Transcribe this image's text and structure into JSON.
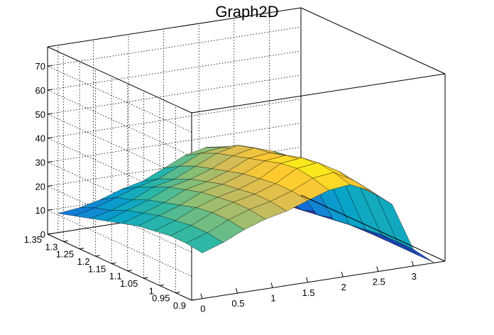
{
  "chart_data": {
    "type": "surface",
    "title": "Graph2D",
    "grid": true,
    "legend": "none",
    "x_axis": {
      "range": [
        -0.15,
        3.45
      ],
      "ticks": [
        "0",
        "0.5",
        "1",
        "1.5",
        "2",
        "2.5",
        "3"
      ]
    },
    "y_axis": {
      "range": [
        0.9,
        1.35
      ],
      "ticks": [
        "0.9",
        "0.95",
        "1",
        "1.05",
        "1.1",
        "1.15",
        "1.2",
        "1.25",
        "1.3",
        "1.35"
      ]
    },
    "z_axis": {
      "range": [
        0,
        78
      ],
      "ticks": [
        "0",
        "10",
        "20",
        "30",
        "40",
        "50",
        "60",
        "70"
      ]
    },
    "colormap": [
      "#352a87",
      "#0f5cdd",
      "#1481d6",
      "#06a4ca",
      "#2eb7a4",
      "#87bf77",
      "#d1bb59",
      "#fec832",
      "#f9fb0e"
    ],
    "grid_x": [
      0,
      0.3,
      0.6,
      0.9,
      1.2,
      1.5,
      1.8,
      2.1,
      2.4,
      2.7,
      3.0,
      3.3
    ],
    "grid_y": [
      1.35,
      1.3,
      1.25,
      1.2,
      1.15,
      1.1,
      1.05,
      1.0,
      0.95,
      0.9
    ],
    "z_values": [
      [
        8,
        9,
        11,
        14,
        16,
        20,
        24,
        26,
        25,
        4,
        1,
        0
      ],
      [
        10,
        12,
        15,
        18,
        20,
        24,
        28,
        29,
        27,
        6,
        1,
        0
      ],
      [
        12,
        14,
        17,
        21,
        23,
        27,
        31,
        33,
        30,
        10,
        2,
        0
      ],
      [
        14,
        17,
        20,
        24,
        26,
        29,
        33,
        35,
        32,
        16,
        3,
        0
      ],
      [
        16,
        19,
        22,
        26,
        28,
        31,
        35,
        36,
        33,
        22,
        4,
        0
      ],
      [
        18,
        21,
        24,
        28,
        30,
        33,
        37,
        38,
        34,
        26,
        5,
        0
      ],
      [
        19,
        22,
        26,
        29,
        31,
        34,
        39,
        40,
        35,
        27,
        6,
        0
      ],
      [
        20,
        23,
        27,
        30,
        32,
        35,
        40,
        41,
        36,
        28,
        7,
        0
      ],
      [
        20,
        23,
        27,
        30,
        32,
        35,
        39,
        40,
        35,
        28,
        7,
        0
      ],
      [
        19,
        22,
        26,
        29,
        31,
        34,
        37,
        38,
        34,
        27,
        7,
        0
      ]
    ]
  }
}
